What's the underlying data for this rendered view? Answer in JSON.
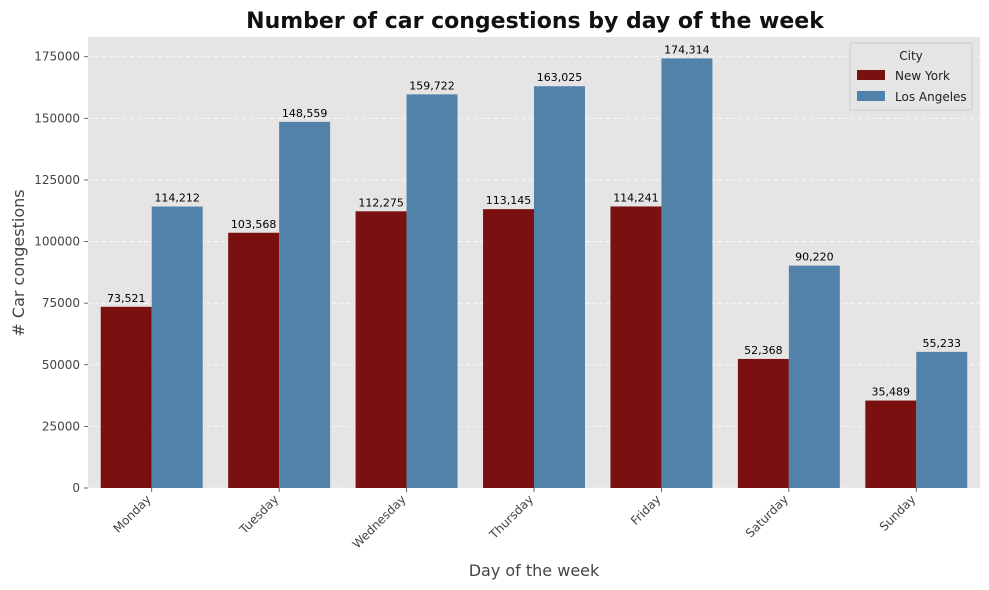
{
  "chart_data": {
    "type": "bar",
    "title": "Number of car congestions by day of the week",
    "xlabel": "Day of the week",
    "ylabel": "# Car congestions",
    "categories": [
      "Monday",
      "Tuesday",
      "Wednesday",
      "Thursday",
      "Friday",
      "Saturday",
      "Sunday"
    ],
    "series": [
      {
        "name": "New York",
        "color": "#7a1010",
        "values": [
          73521,
          103568,
          112275,
          113145,
          114241,
          52368,
          35489
        ],
        "labels": [
          "73,521",
          "103,568",
          "112,275",
          "113,145",
          "114,241",
          "52,368",
          "35,489"
        ]
      },
      {
        "name": "Los Angeles",
        "color": "#5282aa",
        "values": [
          114212,
          148559,
          159722,
          163025,
          174314,
          90220,
          55233
        ],
        "labels": [
          "114,212",
          "148,559",
          "159,722",
          "163,025",
          "174,314",
          "90,220",
          "55,233"
        ]
      }
    ],
    "ylim": [
      0,
      183000
    ],
    "yticks": [
      0,
      25000,
      50000,
      75000,
      100000,
      125000,
      150000,
      175000
    ],
    "ytick_labels": [
      "0",
      "25000",
      "50000",
      "75000",
      "100000",
      "125000",
      "150000",
      "175000"
    ],
    "legend_title": "City",
    "legend_position": "top-right",
    "grid": true,
    "background": "#e5e5e5"
  }
}
